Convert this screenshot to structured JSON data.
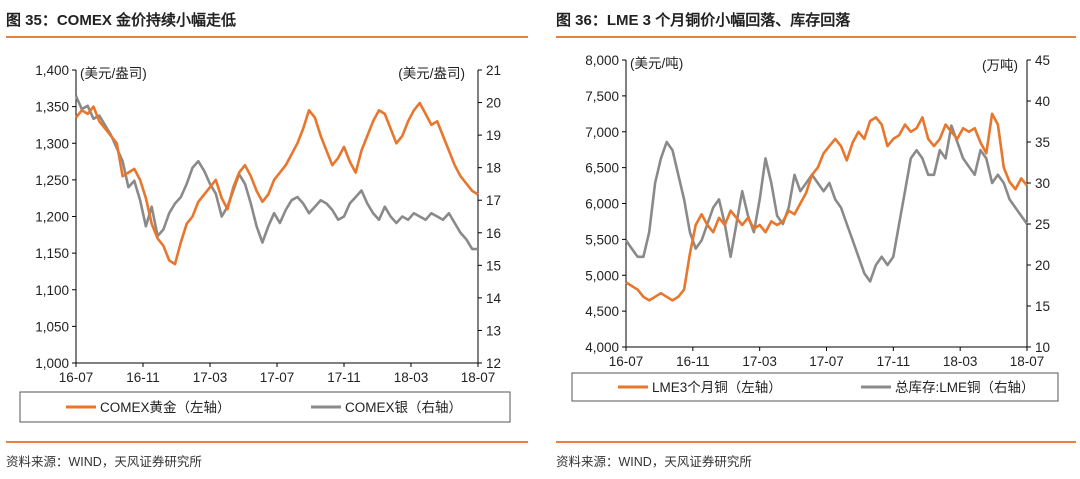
{
  "colors": {
    "orange": "#e8762c",
    "gray": "#8a8a8a",
    "rule": "#e8823a"
  },
  "charts": [
    {
      "title": "图 35：COMEX 金价持续小幅走低",
      "source": "资料来源：WIND，天风证券研究所",
      "chart_data": {
        "type": "line",
        "x_ticks": [
          "16-07",
          "16-11",
          "17-03",
          "17-07",
          "17-11",
          "18-03",
          "18-07"
        ],
        "y_left": {
          "unit": "(美元/盎司)",
          "ylim": [
            1000,
            1400
          ],
          "ticks": [
            "1,000",
            "1,050",
            "1,100",
            "1,150",
            "1,200",
            "1,250",
            "1,300",
            "1,350",
            "1,400"
          ]
        },
        "y_right": {
          "unit": "(美元/盎司)",
          "ylim": [
            12,
            21
          ],
          "ticks": [
            "12",
            "13",
            "14",
            "15",
            "16",
            "17",
            "18",
            "19",
            "20",
            "21"
          ]
        },
        "series": [
          {
            "name": "COMEX黄金（左轴）",
            "axis": "left",
            "color": "#e8762c",
            "values": [
              1335,
              1345,
              1340,
              1350,
              1330,
              1320,
              1310,
              1300,
              1255,
              1260,
              1265,
              1250,
              1225,
              1190,
              1170,
              1160,
              1140,
              1135,
              1165,
              1190,
              1200,
              1220,
              1230,
              1240,
              1250,
              1225,
              1210,
              1240,
              1260,
              1270,
              1255,
              1235,
              1220,
              1230,
              1250,
              1260,
              1270,
              1285,
              1300,
              1320,
              1345,
              1335,
              1310,
              1290,
              1270,
              1280,
              1295,
              1275,
              1260,
              1290,
              1310,
              1330,
              1345,
              1340,
              1320,
              1300,
              1310,
              1330,
              1345,
              1355,
              1340,
              1325,
              1330,
              1310,
              1290,
              1270,
              1255,
              1245,
              1235,
              1230
            ]
          },
          {
            "name": "COMEX银（右轴）",
            "axis": "right",
            "color": "#8a8a8a",
            "values": [
              20.2,
              19.8,
              19.9,
              19.5,
              19.6,
              19.3,
              19.0,
              18.6,
              18.2,
              17.4,
              17.6,
              17.0,
              16.2,
              16.8,
              15.9,
              16.1,
              16.6,
              16.9,
              17.1,
              17.5,
              18.0,
              18.2,
              17.9,
              17.5,
              17.2,
              16.5,
              16.8,
              17.3,
              17.8,
              17.5,
              16.9,
              16.2,
              15.7,
              16.2,
              16.6,
              16.3,
              16.7,
              17.0,
              17.1,
              16.9,
              16.6,
              16.8,
              17.0,
              16.9,
              16.7,
              16.4,
              16.5,
              16.9,
              17.1,
              17.3,
              16.9,
              16.6,
              16.4,
              16.8,
              16.5,
              16.3,
              16.5,
              16.4,
              16.6,
              16.5,
              16.4,
              16.6,
              16.5,
              16.4,
              16.6,
              16.3,
              16.0,
              15.8,
              15.5,
              15.5
            ]
          }
        ]
      }
    },
    {
      "title": "图 36：LME 3 个月铜价小幅回落、库存回落",
      "source": "资料来源：WIND，天风证券研究所",
      "chart_data": {
        "type": "line",
        "x_ticks": [
          "16-07",
          "16-11",
          "17-03",
          "17-07",
          "17-11",
          "18-03",
          "18-07"
        ],
        "y_left": {
          "unit": "(美元/吨)",
          "ylim": [
            4000,
            8000
          ],
          "ticks": [
            "4,000",
            "4,500",
            "5,000",
            "5,500",
            "6,000",
            "6,500",
            "7,000",
            "7,500",
            "8,000"
          ]
        },
        "y_right": {
          "unit": "(万吨)",
          "ylim": [
            10,
            45
          ],
          "ticks": [
            "10",
            "15",
            "20",
            "25",
            "30",
            "35",
            "40",
            "45"
          ]
        },
        "series": [
          {
            "name": "LME3个月铜（左轴）",
            "axis": "left",
            "color": "#e8762c",
            "values": [
              4900,
              4850,
              4800,
              4700,
              4650,
              4700,
              4750,
              4700,
              4650,
              4700,
              4800,
              5300,
              5700,
              5850,
              5700,
              5600,
              5800,
              5700,
              5900,
              5800,
              5700,
              5800,
              5650,
              5700,
              5600,
              5750,
              5700,
              5750,
              5900,
              5850,
              6000,
              6150,
              6400,
              6500,
              6700,
              6800,
              6900,
              6800,
              6600,
              6850,
              7000,
              6900,
              7150,
              7200,
              7100,
              6800,
              6900,
              6950,
              7100,
              7000,
              7050,
              7200,
              6900,
              6800,
              6900,
              7100,
              7000,
              6900,
              7050,
              7000,
              7050,
              6850,
              6700,
              7250,
              7100,
              6500,
              6300,
              6200,
              6350,
              6250
            ]
          },
          {
            "name": "总库存:LME铜（右轴）",
            "axis": "right",
            "color": "#8a8a8a",
            "values": [
              23,
              22,
              21,
              21,
              24,
              30,
              33,
              35,
              34,
              31,
              28,
              24,
              22,
              23,
              25,
              27,
              28,
              25,
              21,
              25,
              29,
              26,
              24,
              28,
              33,
              30,
              26,
              25,
              27,
              31,
              29,
              30,
              31,
              30,
              29,
              30,
              28,
              27,
              25,
              23,
              21,
              19,
              18,
              20,
              21,
              20,
              21,
              25,
              29,
              33,
              34,
              33,
              31,
              31,
              34,
              33,
              37,
              35,
              33,
              32,
              31,
              34,
              33,
              30,
              31,
              30,
              28,
              27,
              26,
              25
            ]
          }
        ]
      }
    }
  ],
  "legend_left": [
    "COMEX黄金（左轴）",
    "COMEX银（右轴）"
  ],
  "legend_right": [
    "LME3个月铜（左轴）",
    "总库存:LME铜（右轴）"
  ]
}
